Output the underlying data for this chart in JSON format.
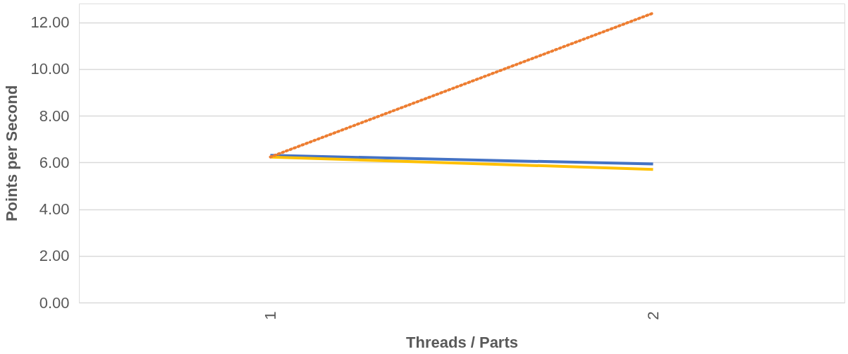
{
  "chart_data": {
    "type": "line",
    "xlabel": "Threads / Parts",
    "ylabel": "Points per Second",
    "categories": [
      "1",
      "2"
    ],
    "series": [
      {
        "color": "#4472c4",
        "line_style": "solid",
        "values": [
          6.3,
          5.93
        ]
      },
      {
        "color": "#ffc000",
        "line_style": "solid",
        "values": [
          6.23,
          5.7
        ]
      },
      {
        "color": "#ed7d31",
        "line_style": "dotted",
        "values": [
          6.23,
          12.39
        ]
      }
    ],
    "ylim": [
      0,
      12.8
    ],
    "yticks": [
      {
        "value": 0,
        "label": "0.00"
      },
      {
        "value": 2,
        "label": "2.00"
      },
      {
        "value": 4,
        "label": "4.00"
      },
      {
        "value": 6,
        "label": "6.00"
      },
      {
        "value": 8,
        "label": "8.00"
      },
      {
        "value": 10,
        "label": "10.00"
      },
      {
        "value": 12,
        "label": "12.00"
      }
    ],
    "grid": "y",
    "legend": false,
    "marker": "none"
  }
}
